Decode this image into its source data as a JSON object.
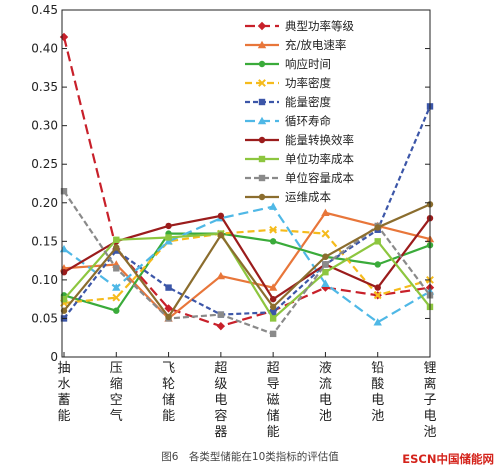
{
  "chart_data": {
    "type": "line",
    "categories": [
      "抽水蓄能",
      "压缩空气",
      "飞轮储能",
      "超级电容器",
      "超导磁储能",
      "液流电池",
      "铅酸电池",
      "锂离子电池"
    ],
    "ylim": [
      0,
      0.45
    ],
    "yticks": [
      "0",
      "0.05",
      "0.10",
      "0.15",
      "0.20",
      "0.25",
      "0.30",
      "0.35",
      "0.40",
      "0.45"
    ],
    "grid": false,
    "legend_position": "top-right",
    "series": [
      {
        "name": "典型功率等级",
        "color": "#c8202a",
        "dash": "10,5",
        "marker": "diamond",
        "values": [
          0.415,
          0.14,
          0.063,
          0.04,
          0.06,
          0.09,
          0.08,
          0.09
        ]
      },
      {
        "name": "充/放电速率",
        "color": "#e8763a",
        "dash": "",
        "marker": "triangle",
        "values": [
          0.115,
          0.12,
          0.05,
          0.105,
          0.09,
          0.187,
          0.17,
          0.153
        ]
      },
      {
        "name": "响应时间",
        "color": "#3aab3a",
        "dash": "",
        "marker": "circle",
        "values": [
          0.08,
          0.06,
          0.16,
          0.16,
          0.15,
          0.13,
          0.12,
          0.145
        ]
      },
      {
        "name": "功率密度",
        "color": "#f5bb1c",
        "dash": "7,4",
        "marker": "x",
        "values": [
          0.07,
          0.077,
          0.15,
          0.16,
          0.165,
          0.16,
          0.08,
          0.1
        ]
      },
      {
        "name": "能量密度",
        "color": "#3c56a8",
        "dash": "5,3",
        "marker": "square",
        "values": [
          0.05,
          0.138,
          0.09,
          0.055,
          0.058,
          0.12,
          0.165,
          0.325
        ]
      },
      {
        "name": "循环寿命",
        "color": "#4fb8e6",
        "dash": "10,5",
        "marker": "triangle",
        "values": [
          0.14,
          0.09,
          0.15,
          0.18,
          0.195,
          0.095,
          0.045,
          0.085
        ]
      },
      {
        "name": "能量转换效率",
        "color": "#9b1c1c",
        "dash": "",
        "marker": "circle",
        "values": [
          0.11,
          0.15,
          0.17,
          0.183,
          0.075,
          0.12,
          0.09,
          0.18
        ]
      },
      {
        "name": "单位功率成本",
        "color": "#8dc63f",
        "dash": "",
        "marker": "square",
        "values": [
          0.075,
          0.152,
          0.155,
          0.16,
          0.05,
          0.11,
          0.15,
          0.065
        ]
      },
      {
        "name": "单位容量成本",
        "color": "#8a8a8a",
        "dash": "6,3",
        "marker": "square",
        "values": [
          0.215,
          0.115,
          0.05,
          0.055,
          0.03,
          0.12,
          0.17,
          0.08
        ]
      },
      {
        "name": "运维成本",
        "color": "#8b6d2e",
        "dash": "",
        "marker": "circle",
        "values": [
          0.06,
          0.142,
          0.052,
          0.158,
          0.065,
          0.13,
          0.168,
          0.198
        ]
      }
    ]
  },
  "caption": "图6　各类型储能在10类指标的评估值",
  "watermark": "ESCN中国储能网"
}
